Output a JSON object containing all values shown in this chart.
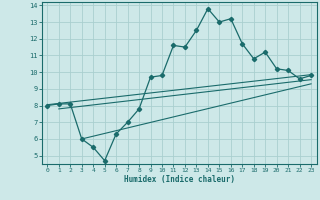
{
  "xlabel": "Humidex (Indice chaleur)",
  "xlim": [
    -0.5,
    23.5
  ],
  "ylim": [
    4.5,
    14.2
  ],
  "xticks": [
    0,
    1,
    2,
    3,
    4,
    5,
    6,
    7,
    8,
    9,
    10,
    11,
    12,
    13,
    14,
    15,
    16,
    17,
    18,
    19,
    20,
    21,
    22,
    23
  ],
  "yticks": [
    5,
    6,
    7,
    8,
    9,
    10,
    11,
    12,
    13,
    14
  ],
  "bg_color": "#cde8e8",
  "line_color": "#1a6b6b",
  "grid_color": "#aacfcf",
  "series1_x": [
    0,
    1,
    2,
    3,
    4,
    5,
    6,
    7,
    8,
    9,
    10,
    11,
    12,
    13,
    14,
    15,
    16,
    17,
    18,
    19,
    20,
    21,
    22,
    23
  ],
  "series1_y": [
    8.0,
    8.1,
    8.1,
    6.0,
    5.5,
    4.7,
    6.3,
    7.0,
    7.8,
    9.7,
    9.8,
    11.6,
    11.5,
    12.5,
    13.8,
    13.0,
    13.2,
    11.7,
    10.8,
    11.2,
    10.2,
    10.1,
    9.6,
    9.8
  ],
  "series2_x": [
    0,
    23
  ],
  "series2_y": [
    8.05,
    9.85
  ],
  "series3_x": [
    1,
    23
  ],
  "series3_y": [
    7.8,
    9.55
  ],
  "series4_x": [
    3,
    23
  ],
  "series4_y": [
    6.0,
    9.3
  ]
}
